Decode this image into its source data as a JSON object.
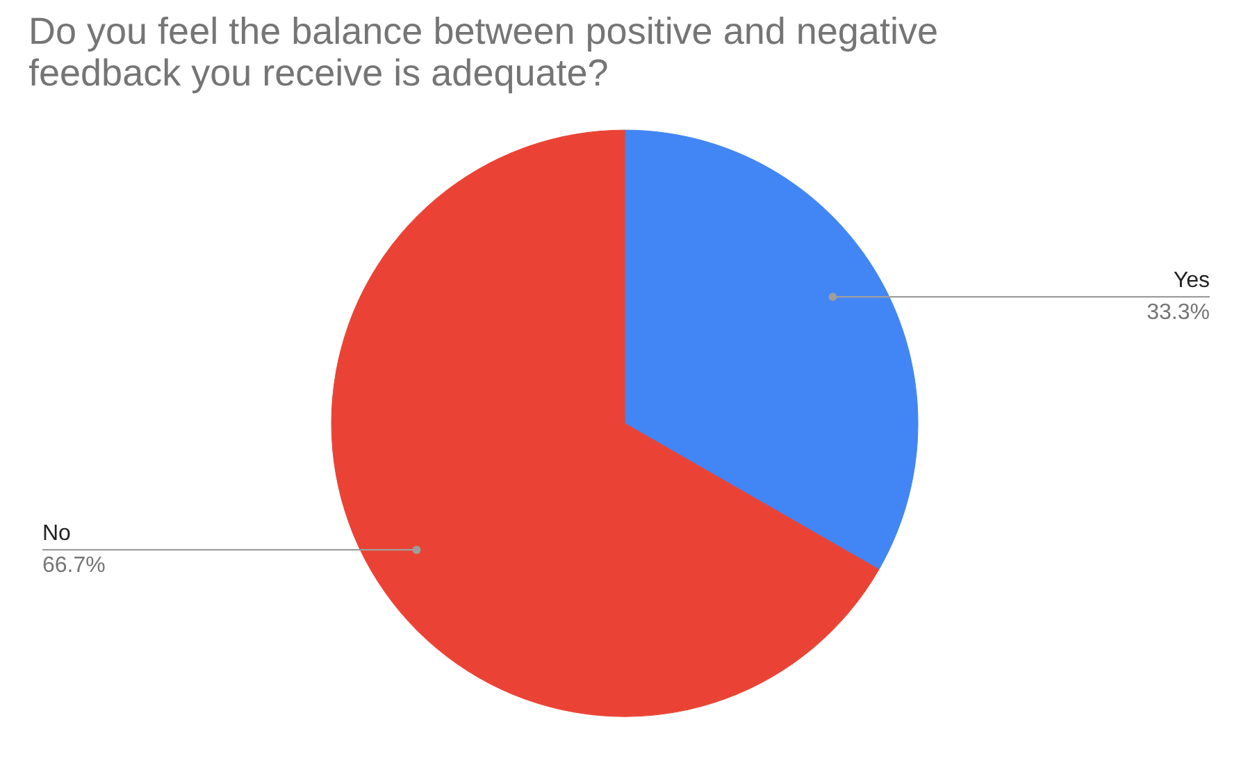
{
  "chart_data": {
    "type": "pie",
    "title": "Do you feel the balance between positive and negative feedback you receive is adequate?",
    "categories": [
      "Yes",
      "No"
    ],
    "values": [
      33.3,
      66.7
    ],
    "colors": [
      "#4285f4",
      "#ea4335"
    ],
    "value_labels": [
      "33.3%",
      "66.7%"
    ]
  }
}
